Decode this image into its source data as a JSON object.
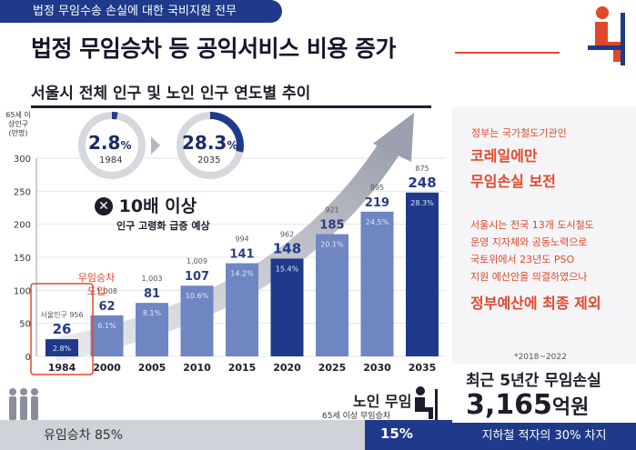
{
  "header": {
    "tag": "법정 무임수송 손실에 대한 국비지원 전무",
    "title": "법정 무임승차 등 공익서비스 비용 증가"
  },
  "chart_data": {
    "type": "bar",
    "title": "서울시 전체 인구 및 노인 인구 연도별 추이",
    "ylabel": "65세 이상인구 (만명)",
    "ylim": [
      0,
      300
    ],
    "yticks": [
      0,
      50,
      100,
      150,
      200,
      250,
      300
    ],
    "categories": [
      "1984",
      "2000",
      "2005",
      "2010",
      "2015",
      "2020",
      "2025",
      "2030",
      "2035"
    ],
    "series": [
      {
        "values": [
          26,
          62,
          81,
          107,
          141,
          148,
          185,
          219,
          248
        ]
      }
    ],
    "total_population": [
      "956",
      "1,008",
      "1,003",
      "1,009",
      "994",
      "962",
      "921",
      "895",
      "875"
    ],
    "elderly_share": [
      "2.8%",
      "6.1%",
      "8.1%",
      "10.6%",
      "14.2%",
      "15.4%",
      "20.1%",
      "24.5%",
      "28.3%"
    ],
    "highlight_prefix_1984": "서울인구",
    "dark_bars": [
      "1984",
      "2020",
      "2035"
    ],
    "colors": {
      "navy": "#1f3a8a",
      "light": "#6f86c2",
      "red": "#e0482b"
    }
  },
  "circles": {
    "left_value": "2.8",
    "left_unit": "%",
    "left_year": "1984",
    "left_fraction": 0.028,
    "right_value": "28.3",
    "right_unit": "%",
    "right_year": "2035",
    "right_fraction": 0.283
  },
  "callouts": {
    "x10_main": "10배 이상",
    "x10_sub": "인구 고령화 급증 예상",
    "intro_line1": "무임승차",
    "intro_line2": "도입"
  },
  "right_panel": {
    "line1": "정부는 국가철도기관인",
    "line2a": "코레일에만",
    "line2b": "무임손실 보전",
    "para1": "서울시는 전국 13개 도시철도",
    "para2": "운영 지자체와 공동노력으로",
    "para3": "국토위에서 23년도 PSO",
    "para4": "지원 예산안을 의결하였으나",
    "line4": "정부예산에 최종 제외",
    "note": "*2018~2022",
    "loss_title": "최근 5년간 무임손실",
    "loss_value": "3,165",
    "loss_unit": "억원",
    "deficit": "지하철 적자의 30% 차지"
  },
  "bottom": {
    "paid_label": "유임승차 85%",
    "free_title": "노인 무임",
    "free_sub": "65세 이상 무임승차",
    "free_pct": "15%",
    "free_fraction": 0.15
  }
}
